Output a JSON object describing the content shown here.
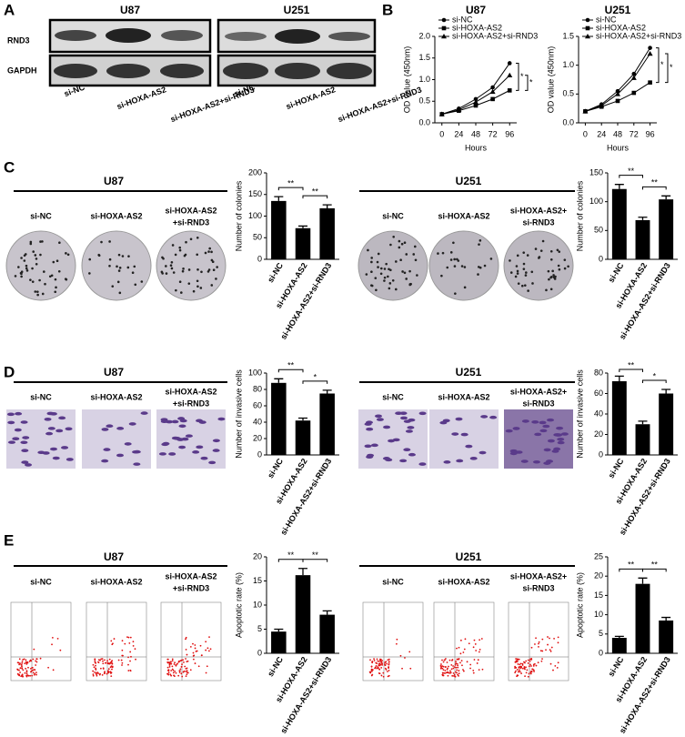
{
  "figure": {
    "panel_letters": [
      "A",
      "B",
      "C",
      "D",
      "E"
    ]
  },
  "blot": {
    "proteins": [
      "RND3",
      "GAPDH"
    ],
    "groups": [
      {
        "title": "U87",
        "lanes": [
          "si-NC",
          "si-HOXA-AS2",
          "si-HOXA-AS2+si-RND3"
        ]
      },
      {
        "title": "U251",
        "lanes": [
          "si-NC",
          "si-HOXA-AS2",
          "si-HOXA-AS2+si-RND3"
        ]
      }
    ]
  },
  "image_panels": [
    {
      "rows": [
        {
          "title": "U87",
          "conditions": [
            [
              "si-NC"
            ],
            [
              "si-HOXA-AS2"
            ],
            [
              "si-HOXA-AS2",
              "+si-RND3"
            ]
          ]
        },
        {
          "title": "U251",
          "conditions": [
            [
              "si-NC"
            ],
            [
              "si-HOXA-AS2"
            ],
            [
              "si-HOXA-AS2+",
              "si-RND3"
            ]
          ]
        }
      ]
    },
    {
      "rows": [
        {
          "title": "U87",
          "conditions": [
            [
              "si-NC"
            ],
            [
              "si-HOXA-AS2"
            ],
            [
              "si-HOXA-AS2",
              "+si-RND3"
            ]
          ]
        },
        {
          "title": "U251",
          "conditions": [
            [
              "si-NC"
            ],
            [
              "si-HOXA-AS2"
            ],
            [
              "si-HOXA-AS2+",
              "si-RND3"
            ]
          ]
        }
      ]
    },
    {
      "rows": [
        {
          "title": "U87",
          "conditions": [
            [
              "si-NC"
            ],
            [
              "si-HOXA-AS2"
            ],
            [
              "si-HOXA-AS2",
              "+si-RND3"
            ]
          ]
        },
        {
          "title": "U251",
          "conditions": [
            [
              "si-NC"
            ],
            [
              "si-HOXA-AS2"
            ],
            [
              "si-HOXA-AS2+",
              "si-RND3"
            ]
          ]
        }
      ]
    }
  ],
  "chart_data": [
    {
      "type": "line",
      "title": "U87",
      "xlabel": "Hours",
      "ylabel": "OD value (450nm)",
      "x": [
        0,
        24,
        48,
        72,
        96
      ],
      "xlim": [
        -10,
        106
      ],
      "xticks": [
        0,
        24,
        48,
        72,
        96
      ],
      "ylim": [
        0,
        2
      ],
      "yticks": [
        {
          "value": 0,
          "label": "0.0"
        },
        0.5,
        {
          "value": 1,
          "label": "1.0"
        },
        1.5,
        {
          "value": 2,
          "label": "2.0"
        }
      ],
      "legend": "upper left",
      "annotations": [
        "*",
        "*"
      ],
      "series": [
        {
          "name": "si-NC",
          "color": "#000000",
          "marker": "circle",
          "values": [
            0.2,
            0.33,
            0.55,
            0.82,
            1.38
          ]
        },
        {
          "name": "si-HOXA-AS2",
          "color": "#000000",
          "marker": "square",
          "values": [
            0.2,
            0.28,
            0.4,
            0.55,
            0.75
          ]
        },
        {
          "name": "si-HOXA-AS2+si-RND3",
          "color": "#000000",
          "marker": "triangle",
          "values": [
            0.2,
            0.3,
            0.48,
            0.72,
            1.1
          ]
        }
      ]
    },
    {
      "type": "line",
      "title": "U251",
      "xlabel": "Hours",
      "ylabel": "OD value (450nm)",
      "x": [
        0,
        24,
        48,
        72,
        96
      ],
      "xlim": [
        -10,
        106
      ],
      "xticks": [
        0,
        24,
        48,
        72,
        96
      ],
      "ylim": [
        0,
        1.5
      ],
      "yticks": [
        {
          "value": 0,
          "label": "0.0"
        },
        0.5,
        {
          "value": 1,
          "label": "1.0"
        },
        1.5
      ],
      "legend": "upper left",
      "annotations": [
        "*",
        "*"
      ],
      "series": [
        {
          "name": "si-NC",
          "color": "#000000",
          "marker": "circle",
          "values": [
            0.2,
            0.32,
            0.55,
            0.85,
            1.3
          ]
        },
        {
          "name": "si-HOXA-AS2",
          "color": "#000000",
          "marker": "square",
          "values": [
            0.2,
            0.28,
            0.38,
            0.52,
            0.7
          ]
        },
        {
          "name": "si-HOXA-AS2+si-RND3",
          "color": "#000000",
          "marker": "triangle",
          "values": [
            0.2,
            0.3,
            0.5,
            0.78,
            1.2
          ]
        }
      ]
    },
    {
      "type": "bar",
      "ylabel": "Number of colonies",
      "color": "#000000",
      "categories": [
        "si-NC",
        "si-HOXA-AS2",
        "si-HOXA-AS2+si-RND3"
      ],
      "values": [
        135,
        72,
        118
      ],
      "errors": [
        10,
        5,
        8
      ],
      "ylim": [
        0,
        200
      ],
      "yticks": [
        0,
        50,
        100,
        150,
        200
      ],
      "annotations": [
        "**",
        "**"
      ]
    },
    {
      "type": "bar",
      "ylabel": "Number of colonies",
      "color": "#000000",
      "categories": [
        "si-NC",
        "si-HOXA-AS2",
        "si-HOXA-AS2+si-RND3"
      ],
      "values": [
        122,
        68,
        104
      ],
      "errors": [
        8,
        5,
        6
      ],
      "ylim": [
        0,
        150
      ],
      "yticks": [
        0,
        50,
        100,
        150
      ],
      "annotations": [
        "**",
        "**"
      ]
    },
    {
      "type": "bar",
      "ylabel": "Number of invasive cells",
      "color": "#000000",
      "categories": [
        "si-NC",
        "si-HOXA-AS2",
        "si-HOXA-AS2+si-RND3"
      ],
      "values": [
        88,
        42,
        75
      ],
      "errors": [
        5,
        3,
        4
      ],
      "ylim": [
        0,
        100
      ],
      "yticks": [
        0,
        20,
        40,
        60,
        80,
        100
      ],
      "annotations": [
        "**",
        "*"
      ]
    },
    {
      "type": "bar",
      "ylabel": "Number of invasive cells",
      "color": "#000000",
      "categories": [
        "si-NC",
        "si-HOXA-AS2",
        "si-HOXA-AS2+si-RND3"
      ],
      "values": [
        72,
        30,
        60
      ],
      "errors": [
        5,
        3,
        4
      ],
      "ylim": [
        0,
        80
      ],
      "yticks": [
        0,
        20,
        40,
        60,
        80
      ],
      "annotations": [
        "**",
        "*"
      ]
    },
    {
      "type": "bar",
      "ylabel": "Apoptotic rate (%)",
      "color": "#000000",
      "categories": [
        "si-NC",
        "si-HOXA-AS2",
        "si-HOXA-AS2+si-RND3"
      ],
      "values": [
        4.5,
        16.2,
        8
      ],
      "errors": [
        0.5,
        1.4,
        0.8
      ],
      "ylim": [
        0,
        20
      ],
      "yticks": [
        0,
        5,
        10,
        15,
        20
      ],
      "annotations": [
        "**",
        "**"
      ]
    },
    {
      "type": "bar",
      "ylabel": "Apoptotic rate (%)",
      "color": "#000000",
      "categories": [
        "si-NC",
        "si-HOXA-AS2",
        "si-HOXA-AS2+si-RND3"
      ],
      "values": [
        4,
        18,
        8.5
      ],
      "errors": [
        0.4,
        1.5,
        0.8
      ],
      "ylim": [
        0,
        25
      ],
      "yticks": [
        0,
        5,
        10,
        15,
        20,
        25
      ],
      "annotations": [
        "**",
        "**"
      ]
    }
  ]
}
